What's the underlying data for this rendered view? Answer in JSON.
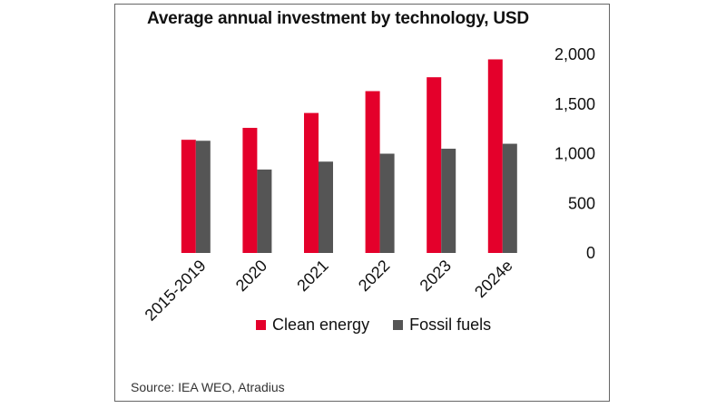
{
  "chart_data": {
    "type": "bar",
    "title": "Average annual investment by technology, USD",
    "categories": [
      "2015-2019",
      "2020",
      "2021",
      "2022",
      "2023",
      "2024e"
    ],
    "series": [
      {
        "name": "Clean energy",
        "color": "#e4002b",
        "values": [
          1140,
          1260,
          1410,
          1630,
          1770,
          1950
        ]
      },
      {
        "name": "Fossil fuels",
        "color": "#555555",
        "values": [
          1130,
          840,
          920,
          1000,
          1050,
          1100
        ]
      }
    ],
    "y_ticks": [
      0,
      500,
      1000,
      1500,
      2000
    ],
    "y_tick_labels": [
      "0",
      "500",
      "1,000",
      "1,500",
      "2,000"
    ],
    "ylim": [
      0,
      2000
    ],
    "y_axis_side": "right",
    "grid": false,
    "legend_position": "bottom",
    "xlabel": "",
    "ylabel": ""
  },
  "source": "Source: IEA WEO, Atradius"
}
